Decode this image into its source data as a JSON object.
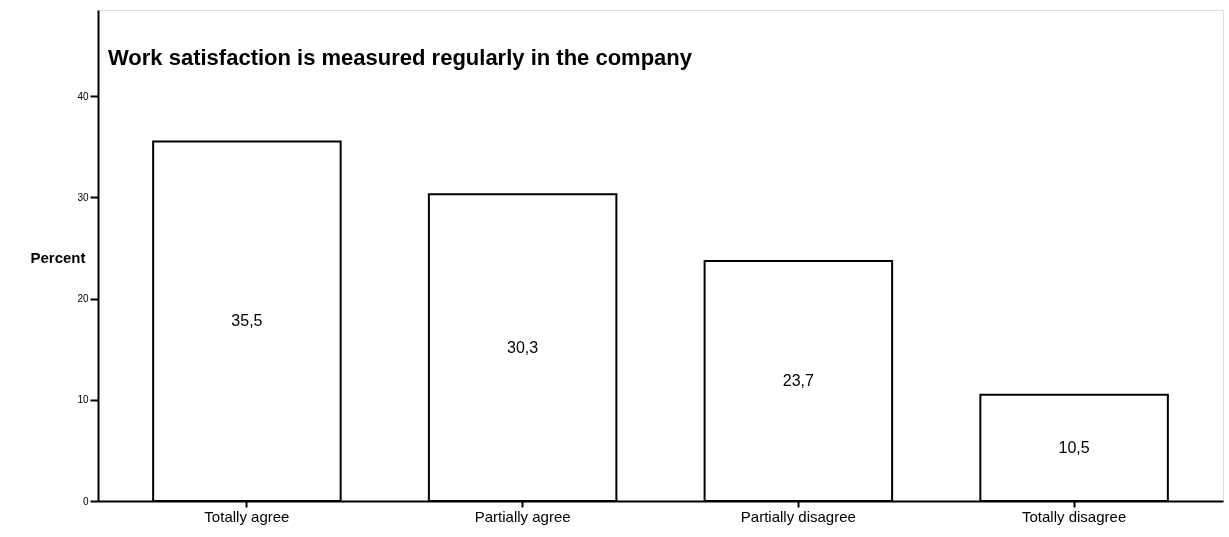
{
  "chart_data": {
    "type": "bar",
    "title": "Work satisfaction is measured regularly in the company",
    "ylabel": "Percent",
    "categories": [
      "Totally agree",
      "Partially agree",
      "Partially disagree",
      "Totally disagree"
    ],
    "values": [
      35.5,
      30.3,
      23.7,
      10.5
    ],
    "value_labels": [
      "35,5",
      "30,3",
      "23,7",
      "10,5"
    ],
    "color": "#ffffff",
    "ylim": [
      0,
      48.5
    ],
    "yticks": [
      0,
      10,
      20,
      30,
      40
    ],
    "grid": false
  }
}
